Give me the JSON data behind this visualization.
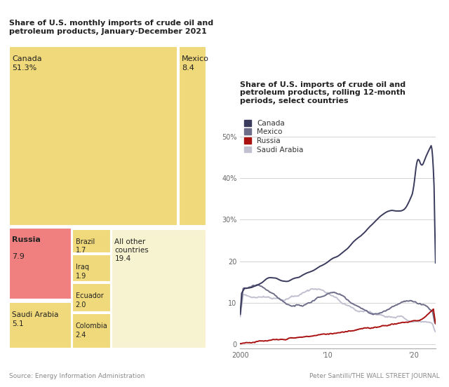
{
  "treemap_title": "Share of U.S. monthly imports of crude oil and\npetroleum products, January-December 2021",
  "line_title": "Share of U.S. imports of crude oil and\npetroleum products, rolling 12-month\nperiods, select countries",
  "source_left": "Source: Energy Information Administration",
  "source_right": "Peter Santilli/THE WALL STREET JOURNAL",
  "canada_color": "#f0d97a",
  "russia_color": "#f08080",
  "other_yellow": "#f5eebb",
  "light_yellow": "#f7f3d0",
  "line_canada": "#3a3a5c",
  "line_mexico": "#6e6e8a",
  "line_russia": "#aa1111",
  "line_saudi": "#c0c0d0",
  "bg_color": "#ffffff",
  "grid_color": "#cccccc",
  "source_color": "#888888",
  "text_dark": "#222222"
}
